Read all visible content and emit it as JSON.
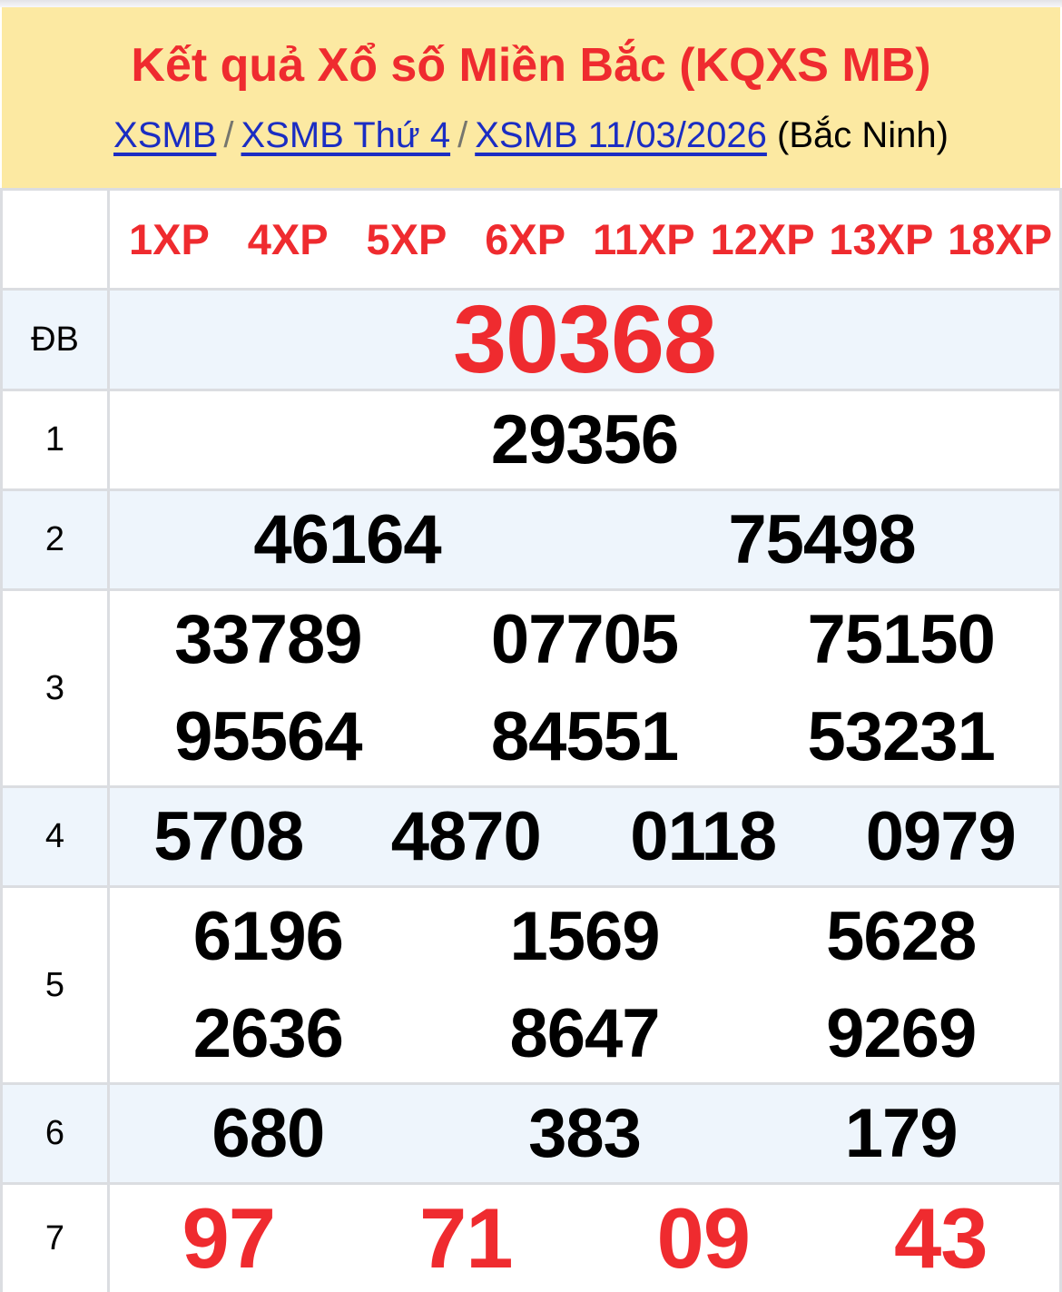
{
  "header": {
    "title": "Kết quả Xổ số Miền Bắc (KQXS MB)",
    "breadcrumb": {
      "links": [
        "XSMB",
        "XSMB Thứ 4",
        "XSMB 11/03/2026"
      ],
      "separator": "/",
      "suffix": "(Bắc Ninh)"
    }
  },
  "table": {
    "xp_labels": [
      "1XP",
      "4XP",
      "5XP",
      "6XP",
      "11XP",
      "12XP",
      "13XP",
      "18XP"
    ],
    "rows": [
      {
        "label": "ĐB",
        "kind": "db",
        "striped": true,
        "lines": [
          [
            "30368"
          ]
        ]
      },
      {
        "label": "1",
        "kind": "normal",
        "striped": false,
        "lines": [
          [
            "29356"
          ]
        ]
      },
      {
        "label": "2",
        "kind": "normal",
        "striped": true,
        "lines": [
          [
            "46164",
            "75498"
          ]
        ]
      },
      {
        "label": "3",
        "kind": "normal",
        "striped": false,
        "lines": [
          [
            "33789",
            "07705",
            "75150"
          ],
          [
            "95564",
            "84551",
            "53231"
          ]
        ]
      },
      {
        "label": "4",
        "kind": "normal",
        "striped": true,
        "lines": [
          [
            "5708",
            "4870",
            "0118",
            "0979"
          ]
        ]
      },
      {
        "label": "5",
        "kind": "normal",
        "striped": false,
        "lines": [
          [
            "6196",
            "1569",
            "5628"
          ],
          [
            "2636",
            "8647",
            "9269"
          ]
        ]
      },
      {
        "label": "6",
        "kind": "normal",
        "striped": true,
        "lines": [
          [
            "680",
            "383",
            "179"
          ]
        ]
      },
      {
        "label": "7",
        "kind": "p7",
        "striped": false,
        "lines": [
          [
            "97",
            "71",
            "09",
            "43"
          ]
        ]
      }
    ]
  },
  "colors": {
    "header_bg": "#fce9a2",
    "accent_red": "#ef2b2f",
    "link_blue": "#1b2dc3",
    "stripe_blue": "#eef5fc",
    "border_gray": "#dbdde1"
  }
}
